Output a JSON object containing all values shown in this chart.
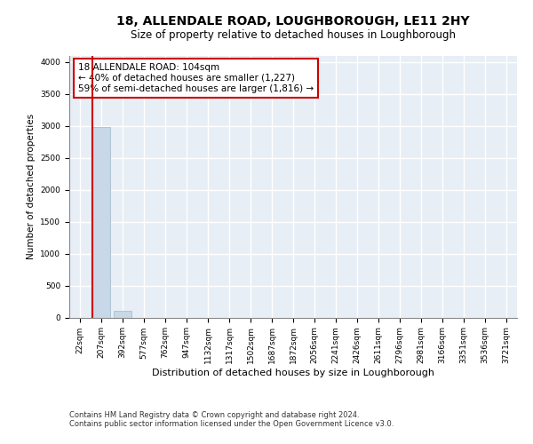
{
  "title1": "18, ALLENDALE ROAD, LOUGHBOROUGH, LE11 2HY",
  "title2": "Size of property relative to detached houses in Loughborough",
  "xlabel": "Distribution of detached houses by size in Loughborough",
  "ylabel": "Number of detached properties",
  "footer1": "Contains HM Land Registry data © Crown copyright and database right 2024.",
  "footer2": "Contains public sector information licensed under the Open Government Licence v3.0.",
  "categories": [
    "22sqm",
    "207sqm",
    "392sqm",
    "577sqm",
    "762sqm",
    "947sqm",
    "1132sqm",
    "1317sqm",
    "1502sqm",
    "1687sqm",
    "1872sqm",
    "2056sqm",
    "2241sqm",
    "2426sqm",
    "2611sqm",
    "2796sqm",
    "2981sqm",
    "3166sqm",
    "3351sqm",
    "3536sqm",
    "3721sqm"
  ],
  "values": [
    0,
    2980,
    110,
    0,
    0,
    0,
    0,
    0,
    0,
    0,
    0,
    0,
    0,
    0,
    0,
    0,
    0,
    0,
    0,
    0,
    0
  ],
  "bar_color": "#c8d8e8",
  "bar_edge_color": "#a0b8cc",
  "annotation_line1": "18 ALLENDALE ROAD: 104sqm",
  "annotation_line2": "← 40% of detached houses are smaller (1,227)",
  "annotation_line3": "59% of semi-detached houses are larger (1,816) →",
  "annotation_box_color": "#ffffff",
  "annotation_border_color": "#cc0000",
  "property_line_color": "#cc0000",
  "property_bar_index": 1,
  "ylim": [
    0,
    4100
  ],
  "yticks": [
    0,
    500,
    1000,
    1500,
    2000,
    2500,
    3000,
    3500,
    4000
  ],
  "background_color": "#e8eef5",
  "grid_color": "#ffffff",
  "title1_fontsize": 10,
  "title2_fontsize": 8.5,
  "xlabel_fontsize": 8,
  "ylabel_fontsize": 7.5,
  "tick_fontsize": 6.5,
  "annotation_fontsize": 7.5,
  "footer_fontsize": 6.0
}
